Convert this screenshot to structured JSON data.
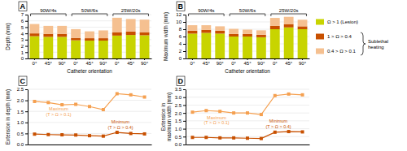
{
  "chart_data": [
    {
      "type": "bar",
      "stacked": true,
      "title": "A",
      "xlabel": "Catheter orientation",
      "ylabel": "Depth (mm)",
      "categories": [
        "0°",
        "45°",
        "90°",
        "0°",
        "45°",
        "90°",
        "0°",
        "45°",
        "90°"
      ],
      "group_labels": [
        "90W/4s",
        "50W/6s",
        "25W/20s"
      ],
      "series": [
        {
          "name": "Ω > 1 (Lesion)",
          "color": "#c8d400",
          "values": [
            3.55,
            3.45,
            3.45,
            2.9,
            2.85,
            2.85,
            3.65,
            3.75,
            3.7
          ]
        },
        {
          "name": "1 > Ω > 0.4",
          "color": "#c85000",
          "values": [
            0.45,
            0.45,
            0.45,
            0.38,
            0.38,
            0.38,
            0.55,
            0.55,
            0.5
          ]
        },
        {
          "name": "0.4 > Ω > 0.1",
          "color": "#f5c090",
          "values": [
            1.5,
            1.3,
            1.3,
            1.4,
            1.1,
            1.25,
            2.3,
            2.0,
            2.0
          ]
        }
      ],
      "ylim": [
        0,
        7
      ],
      "yticks": [
        0,
        1,
        2,
        3,
        4,
        5,
        6,
        7
      ],
      "grid": true,
      "legend": "right",
      "annotations": [
        "Sublethal\nheating"
      ]
    },
    {
      "type": "bar",
      "stacked": true,
      "title": "B",
      "xlabel": "Catheter orientation",
      "ylabel": "Maximum width (mm)",
      "categories": [
        "0°",
        "45°",
        "90°",
        "0°",
        "45°",
        "90°",
        "0°",
        "45°",
        "90°"
      ],
      "group_labels": [
        "90W/4s",
        "50W/6s",
        "25W/20s"
      ],
      "series": [
        {
          "color": "#c8d400",
          "values": [
            6.8,
            7.0,
            6.8,
            6.0,
            6.0,
            5.8,
            8.0,
            8.5,
            8.0
          ]
        },
        {
          "color": "#c85000",
          "values": [
            0.8,
            0.8,
            0.8,
            0.7,
            0.7,
            0.7,
            0.9,
            0.9,
            0.8
          ]
        },
        {
          "color": "#f5c090",
          "values": [
            1.5,
            1.3,
            1.2,
            1.4,
            1.2,
            1.2,
            2.2,
            2.0,
            1.8
          ]
        }
      ],
      "ylim": [
        0,
        12
      ],
      "yticks": [
        0,
        2,
        4,
        6,
        8,
        10,
        12
      ],
      "grid": true
    },
    {
      "type": "line",
      "title": "C",
      "ylabel": "Extension in depth (mm)",
      "x": [
        1,
        2,
        3,
        4,
        5,
        6,
        7,
        8,
        9
      ],
      "xlim": [
        0.5,
        9.5
      ],
      "tick_labels": "y",
      "series": [
        {
          "name": "Maximum\n(T > Ω > 0.1)",
          "color": "#f5a050",
          "marker": "square",
          "values": [
            1.95,
            1.9,
            1.8,
            1.82,
            1.72,
            1.58,
            2.3,
            2.25,
            2.15
          ]
        },
        {
          "name": "Minimum\n(T > Ω > 0.4)",
          "color": "#c85000",
          "marker": "square",
          "values": [
            0.47,
            0.45,
            0.44,
            0.43,
            0.4,
            0.38,
            0.55,
            0.5,
            0.48
          ]
        }
      ],
      "ylim": [
        0.0,
        2.5
      ],
      "yticks": [
        {
          "value": 0.0,
          "label": "0.0"
        },
        0.5,
        {
          "value": 1.0,
          "label": "1.0"
        },
        1.5,
        {
          "value": 2.0,
          "label": "2.0"
        },
        2.5
      ],
      "grid": true
    },
    {
      "type": "line",
      "title": "D",
      "ylabel": "Extension in\nmaximum width (mm)",
      "x": [
        1,
        2,
        3,
        4,
        5,
        6,
        7,
        8,
        9
      ],
      "xlim": [
        0.5,
        9.5
      ],
      "tick_labels": "y",
      "series": [
        {
          "name": "Maximum\n(T > Ω > 0.1)",
          "color": "#f5a050",
          "marker": "square",
          "values": [
            2.05,
            2.15,
            2.1,
            2.0,
            2.0,
            1.9,
            3.1,
            3.2,
            3.15
          ]
        },
        {
          "name": "Minimum\n(T > Ω > 0.4)",
          "color": "#c85000",
          "marker": "square",
          "values": [
            0.45,
            0.45,
            0.42,
            0.42,
            0.4,
            0.38,
            0.78,
            0.82,
            0.8
          ]
        }
      ],
      "ylim": [
        0.0,
        3.5
      ],
      "yticks": [
        {
          "value": 0.0,
          "label": "0.0"
        },
        0.5,
        {
          "value": 1.0,
          "label": "1.0"
        },
        1.5,
        {
          "value": 2.0,
          "label": "2.0"
        },
        2.5,
        {
          "value": 3.0,
          "label": "3.0"
        },
        3.5
      ],
      "grid": true
    }
  ]
}
